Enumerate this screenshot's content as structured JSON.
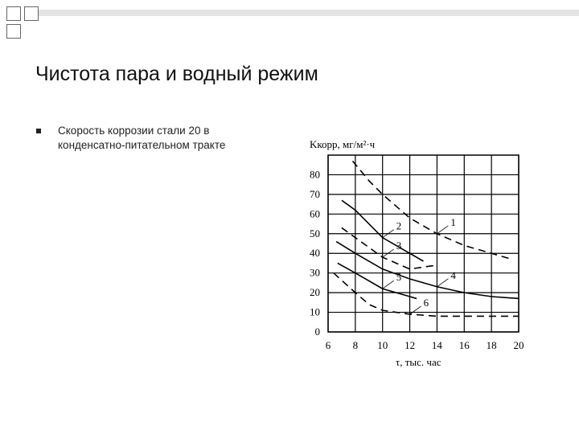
{
  "title": "Чистота пара и водный режим",
  "bullet": "Скорость коррозии стали 20 в конденсатно-питательном тракте",
  "chart_data": {
    "type": "line",
    "y_label": "Kкорр, мг/м²·ч",
    "x_label": "τ, тыс. час",
    "xlim": [
      6,
      20
    ],
    "xticks": [
      6,
      8,
      10,
      12,
      14,
      16,
      18,
      20
    ],
    "ylim": [
      0,
      90
    ],
    "yticks": [
      0,
      10,
      20,
      30,
      40,
      50,
      60,
      70,
      80
    ],
    "grid": true,
    "series": [
      {
        "name": "1",
        "color": "#000",
        "dash": true,
        "x": [
          7.8,
          9,
          10,
          12,
          14,
          16,
          18,
          19.5
        ],
        "values": [
          87,
          77,
          70,
          58,
          50,
          44,
          40,
          37
        ]
      },
      {
        "name": "2",
        "color": "#000",
        "dash": false,
        "x": [
          7,
          8,
          10,
          12,
          13
        ],
        "values": [
          67,
          62,
          48,
          40,
          36
        ]
      },
      {
        "name": "3",
        "color": "#000",
        "dash": true,
        "x": [
          7,
          8,
          10,
          12,
          14
        ],
        "values": [
          53,
          48,
          38,
          32,
          34
        ]
      },
      {
        "name": "4",
        "color": "#000",
        "dash": false,
        "x": [
          6.6,
          8,
          10,
          12,
          14,
          16,
          18,
          20
        ],
        "values": [
          46,
          40,
          32,
          27,
          23,
          20,
          18,
          17
        ]
      },
      {
        "name": "5",
        "color": "#000",
        "dash": false,
        "x": [
          6.7,
          8,
          10,
          12.5
        ],
        "values": [
          35,
          30,
          22,
          17
        ]
      },
      {
        "name": "6",
        "color": "#000",
        "dash": true,
        "x": [
          6.4,
          8,
          9,
          10,
          12,
          14,
          16,
          18,
          20
        ],
        "values": [
          30,
          20,
          14,
          11,
          9,
          8,
          8,
          8,
          8
        ]
      }
    ]
  }
}
